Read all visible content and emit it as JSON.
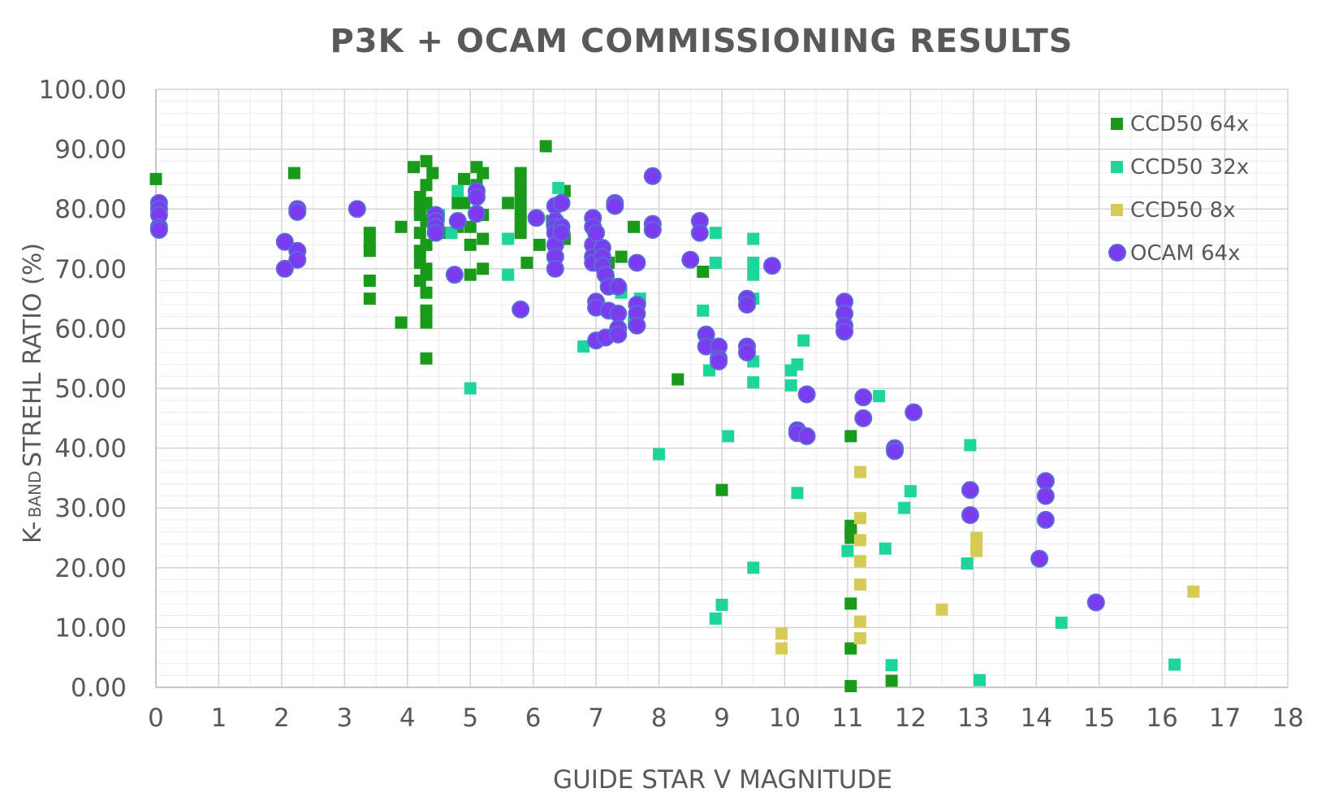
{
  "chart_data": {
    "type": "scatter",
    "title": "P3K + OCAM COMMISSIONING RESULTS",
    "xlabel": "GUIDE STAR V MAGNITUDE",
    "ylabel_prefix": "K-",
    "ylabel_small": "BAND",
    "ylabel_main": " STREHL RATIO (%)",
    "xlim": [
      0,
      18
    ],
    "ylim": [
      0,
      100
    ],
    "xticks": [
      "0",
      "1",
      "2",
      "3",
      "4",
      "5",
      "6",
      "7",
      "8",
      "9",
      "10",
      "11",
      "12",
      "13",
      "14",
      "15",
      "16",
      "17",
      "18"
    ],
    "yticks": [
      "0.00",
      "10.00",
      "20.00",
      "30.00",
      "40.00",
      "50.00",
      "60.00",
      "70.00",
      "80.00",
      "90.00",
      "100.00"
    ],
    "grid": "major and minor",
    "legend_position": "top-right",
    "series": [
      {
        "name": "CCD50 64x",
        "marker": "square",
        "color": "#1a9a1a",
        "points": [
          [
            0.0,
            85
          ],
          [
            2.2,
            86
          ],
          [
            3.4,
            76
          ],
          [
            3.4,
            74
          ],
          [
            3.4,
            73
          ],
          [
            3.4,
            68
          ],
          [
            3.4,
            65
          ],
          [
            3.9,
            61
          ],
          [
            3.9,
            77
          ],
          [
            4.1,
            87
          ],
          [
            4.2,
            73
          ],
          [
            4.2,
            71
          ],
          [
            4.2,
            68
          ],
          [
            4.2,
            80
          ],
          [
            4.2,
            82
          ],
          [
            4.2,
            76
          ],
          [
            4.2,
            79
          ],
          [
            4.3,
            88
          ],
          [
            4.3,
            84
          ],
          [
            4.3,
            81
          ],
          [
            4.3,
            78
          ],
          [
            4.3,
            74
          ],
          [
            4.3,
            70
          ],
          [
            4.3,
            69
          ],
          [
            4.3,
            66
          ],
          [
            4.3,
            63
          ],
          [
            4.3,
            61
          ],
          [
            4.3,
            55
          ],
          [
            4.4,
            86
          ],
          [
            4.4,
            79
          ],
          [
            4.6,
            76
          ],
          [
            4.8,
            81
          ],
          [
            4.8,
            77
          ],
          [
            4.9,
            85
          ],
          [
            4.9,
            81
          ],
          [
            5.0,
            74
          ],
          [
            5.0,
            69
          ],
          [
            5.0,
            77
          ],
          [
            5.1,
            87
          ],
          [
            5.1,
            84
          ],
          [
            5.2,
            86
          ],
          [
            5.2,
            79
          ],
          [
            5.2,
            75
          ],
          [
            5.2,
            70
          ],
          [
            5.6,
            81
          ],
          [
            5.8,
            86
          ],
          [
            5.8,
            84
          ],
          [
            5.8,
            82
          ],
          [
            5.8,
            80
          ],
          [
            5.8,
            78
          ],
          [
            5.8,
            76
          ],
          [
            5.9,
            71
          ],
          [
            6.1,
            74
          ],
          [
            6.2,
            90.5
          ],
          [
            6.3,
            78
          ],
          [
            6.5,
            83
          ],
          [
            6.5,
            75
          ],
          [
            7.2,
            71
          ],
          [
            7.4,
            72
          ],
          [
            7.6,
            77
          ],
          [
            8.3,
            51.5
          ],
          [
            8.7,
            69.5
          ],
          [
            9.0,
            33
          ],
          [
            11.05,
            42
          ],
          [
            11.05,
            27
          ],
          [
            11.05,
            26
          ],
          [
            11.05,
            25
          ],
          [
            11.05,
            14
          ],
          [
            11.05,
            6.5
          ],
          [
            11.05,
            0.2
          ],
          [
            11.7,
            1.1
          ]
        ]
      },
      {
        "name": "CCD50 32x",
        "marker": "square",
        "color": "#1ed69c",
        "points": [
          [
            4.5,
            79
          ],
          [
            4.7,
            76
          ],
          [
            4.8,
            83
          ],
          [
            5.0,
            50
          ],
          [
            5.6,
            69
          ],
          [
            5.6,
            75
          ],
          [
            6.4,
            83.5
          ],
          [
            6.8,
            57
          ],
          [
            7.2,
            68
          ],
          [
            7.4,
            66
          ],
          [
            7.6,
            61
          ],
          [
            7.7,
            65
          ],
          [
            8.0,
            39
          ],
          [
            8.7,
            63
          ],
          [
            8.8,
            53
          ],
          [
            8.9,
            76
          ],
          [
            8.9,
            71
          ],
          [
            8.9,
            11.5
          ],
          [
            9.0,
            13.8
          ],
          [
            9.1,
            42
          ],
          [
            9.5,
            75
          ],
          [
            9.5,
            71
          ],
          [
            9.5,
            69
          ],
          [
            9.5,
            65
          ],
          [
            9.5,
            54.5
          ],
          [
            9.5,
            51
          ],
          [
            9.5,
            20
          ],
          [
            10.1,
            50.5
          ],
          [
            10.1,
            53
          ],
          [
            10.2,
            54
          ],
          [
            10.2,
            32.5
          ],
          [
            10.3,
            58
          ],
          [
            11.0,
            22.8
          ],
          [
            11.5,
            48.7
          ],
          [
            11.6,
            23.2
          ],
          [
            11.7,
            3.7
          ],
          [
            11.9,
            30
          ],
          [
            12.0,
            32.8
          ],
          [
            12.9,
            20.7
          ],
          [
            12.95,
            40.5
          ],
          [
            13.1,
            1.2
          ],
          [
            14.4,
            10.8
          ],
          [
            16.2,
            3.8
          ]
        ]
      },
      {
        "name": "CCD50 8x",
        "marker": "square",
        "color": "#d6cc55",
        "points": [
          [
            9.95,
            9
          ],
          [
            9.95,
            6.5
          ],
          [
            11.2,
            36
          ],
          [
            11.2,
            28.3
          ],
          [
            11.2,
            24.6
          ],
          [
            11.2,
            21.1
          ],
          [
            11.2,
            17.2
          ],
          [
            11.2,
            11
          ],
          [
            11.2,
            8.2
          ],
          [
            12.5,
            13
          ],
          [
            13.05,
            25
          ],
          [
            13.05,
            23.5
          ],
          [
            13.05,
            22.8
          ],
          [
            16.5,
            16
          ]
        ]
      },
      {
        "name": "OCAM 64x",
        "marker": "circle",
        "color": "#7b3cf0",
        "stroke": "#5a6ad8",
        "points": [
          [
            0.05,
            81
          ],
          [
            0.05,
            80
          ],
          [
            0.05,
            79
          ],
          [
            0.05,
            77
          ],
          [
            0.05,
            76.5
          ],
          [
            2.05,
            74.5
          ],
          [
            2.05,
            70
          ],
          [
            2.25,
            80
          ],
          [
            2.25,
            79.5
          ],
          [
            2.25,
            73
          ],
          [
            2.25,
            71.5
          ],
          [
            3.2,
            80
          ],
          [
            4.45,
            79
          ],
          [
            4.45,
            78
          ],
          [
            4.45,
            77
          ],
          [
            4.45,
            76
          ],
          [
            4.75,
            69
          ],
          [
            4.8,
            78
          ],
          [
            5.1,
            83
          ],
          [
            5.1,
            82
          ],
          [
            5.1,
            79.2
          ],
          [
            5.8,
            63.2
          ],
          [
            6.05,
            78.5
          ],
          [
            6.35,
            80.5
          ],
          [
            6.35,
            78
          ],
          [
            6.35,
            77
          ],
          [
            6.35,
            76
          ],
          [
            6.35,
            74
          ],
          [
            6.35,
            72
          ],
          [
            6.35,
            70
          ],
          [
            6.45,
            81
          ],
          [
            6.45,
            77
          ],
          [
            6.45,
            76
          ],
          [
            6.95,
            78.5
          ],
          [
            6.95,
            77
          ],
          [
            6.95,
            74
          ],
          [
            6.95,
            72
          ],
          [
            6.95,
            71
          ],
          [
            7.0,
            76
          ],
          [
            7.0,
            64.5
          ],
          [
            7.0,
            63.5
          ],
          [
            7.0,
            58
          ],
          [
            7.1,
            73.5
          ],
          [
            7.1,
            72
          ],
          [
            7.1,
            70.5
          ],
          [
            7.15,
            69
          ],
          [
            7.2,
            63
          ],
          [
            7.15,
            58.5
          ],
          [
            7.2,
            67
          ],
          [
            7.3,
            81
          ],
          [
            7.3,
            80.5
          ],
          [
            7.35,
            67
          ],
          [
            7.35,
            62.5
          ],
          [
            7.35,
            60
          ],
          [
            7.35,
            59
          ],
          [
            7.65,
            71
          ],
          [
            7.65,
            64
          ],
          [
            7.65,
            62.5
          ],
          [
            7.65,
            60.5
          ],
          [
            7.9,
            85.5
          ],
          [
            7.9,
            77.5
          ],
          [
            7.9,
            76.5
          ],
          [
            8.5,
            71.5
          ],
          [
            8.65,
            78
          ],
          [
            8.65,
            76
          ],
          [
            8.75,
            59
          ],
          [
            8.75,
            57
          ],
          [
            8.95,
            57
          ],
          [
            8.95,
            55
          ],
          [
            8.95,
            54.5
          ],
          [
            9.4,
            65
          ],
          [
            9.4,
            64
          ],
          [
            9.4,
            57
          ],
          [
            9.4,
            56
          ],
          [
            9.8,
            70.5
          ],
          [
            10.2,
            43
          ],
          [
            10.2,
            42.5
          ],
          [
            10.35,
            49
          ],
          [
            10.35,
            42
          ],
          [
            10.95,
            64.5
          ],
          [
            10.95,
            62.5
          ],
          [
            10.95,
            60.5
          ],
          [
            10.95,
            59.5
          ],
          [
            11.25,
            48.5
          ],
          [
            11.25,
            45
          ],
          [
            11.75,
            40
          ],
          [
            11.75,
            39.5
          ],
          [
            12.05,
            46
          ],
          [
            12.95,
            33
          ],
          [
            12.95,
            28.8
          ],
          [
            14.05,
            21.5
          ],
          [
            14.15,
            34.5
          ],
          [
            14.15,
            32
          ],
          [
            14.15,
            28
          ],
          [
            14.95,
            14.2
          ]
        ]
      }
    ]
  }
}
